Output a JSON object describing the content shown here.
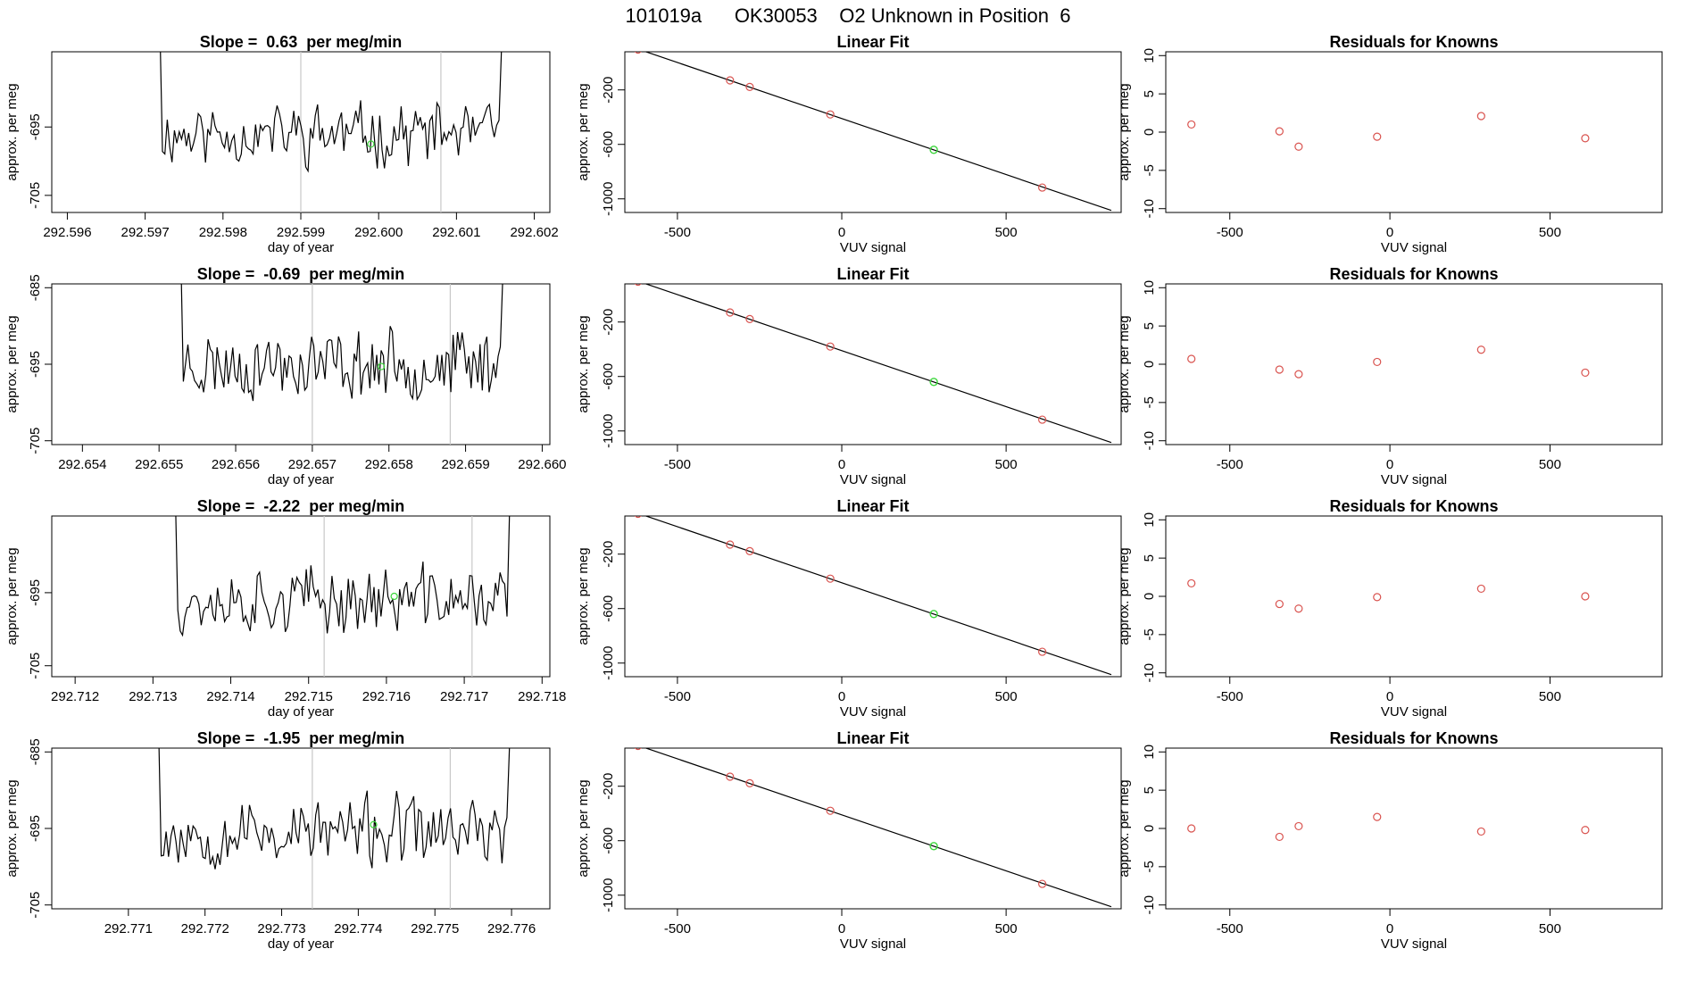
{
  "page_title": "101019a      OK30053    O2 Unknown in Position  6",
  "colors": {
    "known": "#d9534f",
    "unknown": "#3cd63c",
    "line": "#000000",
    "marker": "#c8c8c8"
  },
  "chart_data": [
    {
      "type": "line",
      "panel": "timeseries",
      "row": 0,
      "title": "Slope =  0.63  per meg/min",
      "xlabel": "day of year",
      "ylabel": "approx. per meg",
      "xlim": [
        292.5958,
        292.6022
      ],
      "ylim": [
        -707.5,
        -684
      ],
      "xticks": [
        "292.596",
        "292.597",
        "292.598",
        "292.599",
        "292.600",
        "292.601",
        "292.602"
      ],
      "yticks": [
        "-695",
        "-705"
      ],
      "window": [
        292.5971,
        292.6017
      ],
      "level": -696,
      "noise_seed": 11,
      "markers": [
        292.599,
        292.6008
      ],
      "unknown_point": {
        "x": 292.5999,
        "y": -697.5
      }
    },
    {
      "type": "line",
      "panel": "timeseries",
      "row": 1,
      "title": "Slope =  -0.69  per meg/min",
      "xlabel": "day of year",
      "ylabel": "approx. per meg",
      "xlim": [
        292.6536,
        292.6601
      ],
      "ylim": [
        -705.5,
        -684.5
      ],
      "xticks": [
        "292.654",
        "292.655",
        "292.656",
        "292.657",
        "292.658",
        "292.659",
        "292.660"
      ],
      "yticks": [
        "-685",
        "-695",
        "-705"
      ],
      "window": [
        292.6552,
        292.6596
      ],
      "level": -695,
      "noise_seed": 23,
      "markers": [
        292.657,
        292.6588
      ],
      "unknown_point": {
        "x": 292.6579,
        "y": -695.3
      }
    },
    {
      "type": "line",
      "panel": "timeseries",
      "row": 2,
      "title": "Slope =  -2.22  per meg/min",
      "xlabel": "day of year",
      "ylabel": "approx. per meg",
      "xlim": [
        292.7117,
        292.7181
      ],
      "ylim": [
        -706.5,
        -684.5
      ],
      "xticks": [
        "292.712",
        "292.713",
        "292.714",
        "292.715",
        "292.716",
        "292.717",
        "292.718"
      ],
      "yticks": [
        "-695",
        "-705"
      ],
      "window": [
        292.7132,
        292.7177
      ],
      "level": -696,
      "noise_seed": 37,
      "markers": [
        292.7152,
        292.7171
      ],
      "unknown_point": {
        "x": 292.7161,
        "y": -695.5
      }
    },
    {
      "type": "line",
      "panel": "timeseries",
      "row": 3,
      "title": "Slope =  -1.95  per meg/min",
      "xlabel": "day of year",
      "ylabel": "approx. per meg",
      "xlim": [
        292.77,
        292.7765
      ],
      "ylim": [
        -705.5,
        -684.5
      ],
      "xticks": [
        "292.771",
        "292.772",
        "292.773",
        "292.774",
        "292.775",
        "292.776"
      ],
      "yticks": [
        "-685",
        "-695",
        "-705"
      ],
      "window": [
        292.7713,
        292.7761
      ],
      "level": -695.5,
      "noise_seed": 53,
      "markers": [
        292.7734,
        292.7752
      ],
      "unknown_point": {
        "x": 292.7742,
        "y": -694.5
      }
    },
    {
      "type": "scatter",
      "panel": "fit",
      "row": 0,
      "title": "Linear Fit",
      "xlabel": "VUV signal",
      "ylabel": "approx. per meg",
      "xlim": [
        -660,
        850
      ],
      "ylim": [
        -1100,
        80
      ],
      "xticks": [
        -500,
        0,
        500
      ],
      "yticks": [
        -200,
        -600,
        -1000
      ],
      "fit_line": {
        "x": [
          -620,
          820
        ],
        "y": [
          100,
          -1085
        ]
      },
      "knowns": [
        {
          "x": -620,
          "y": 96
        },
        {
          "x": -340,
          "y": -130
        },
        {
          "x": -280,
          "y": -178
        },
        {
          "x": -35,
          "y": -380
        },
        {
          "x": 610,
          "y": -917
        }
      ],
      "unknown": {
        "x": 280,
        "y": -640
      }
    },
    {
      "type": "scatter",
      "panel": "fit",
      "row": 1,
      "title": "Linear Fit",
      "xlabel": "VUV signal",
      "ylabel": "approx. per meg",
      "xlim": [
        -660,
        850
      ],
      "ylim": [
        -1100,
        80
      ],
      "xticks": [
        -500,
        0,
        500
      ],
      "yticks": [
        -200,
        -600,
        -1000
      ],
      "fit_line": {
        "x": [
          -620,
          820
        ],
        "y": [
          100,
          -1085
        ]
      },
      "knowns": [
        {
          "x": -620,
          "y": 96
        },
        {
          "x": -340,
          "y": -130
        },
        {
          "x": -280,
          "y": -178
        },
        {
          "x": -35,
          "y": -380
        },
        {
          "x": 610,
          "y": -917
        }
      ],
      "unknown": {
        "x": 280,
        "y": -640
      }
    },
    {
      "type": "scatter",
      "panel": "fit",
      "row": 2,
      "title": "Linear Fit",
      "xlabel": "VUV signal",
      "ylabel": "approx. per meg",
      "xlim": [
        -660,
        850
      ],
      "ylim": [
        -1100,
        80
      ],
      "xticks": [
        -500,
        0,
        500
      ],
      "yticks": [
        -200,
        -600,
        -1000
      ],
      "fit_line": {
        "x": [
          -620,
          820
        ],
        "y": [
          100,
          -1085
        ]
      },
      "knowns": [
        {
          "x": -620,
          "y": 96
        },
        {
          "x": -340,
          "y": -130
        },
        {
          "x": -280,
          "y": -178
        },
        {
          "x": -35,
          "y": -380
        },
        {
          "x": 610,
          "y": -917
        }
      ],
      "unknown": {
        "x": 280,
        "y": -640
      }
    },
    {
      "type": "scatter",
      "panel": "fit",
      "row": 3,
      "title": "Linear Fit",
      "xlabel": "VUV signal",
      "ylabel": "approx. per meg",
      "xlim": [
        -660,
        850
      ],
      "ylim": [
        -1100,
        80
      ],
      "xticks": [
        -500,
        0,
        500
      ],
      "yticks": [
        -200,
        -600,
        -1000
      ],
      "fit_line": {
        "x": [
          -620,
          820
        ],
        "y": [
          100,
          -1085
        ]
      },
      "knowns": [
        {
          "x": -620,
          "y": 96
        },
        {
          "x": -340,
          "y": -130
        },
        {
          "x": -280,
          "y": -178
        },
        {
          "x": -35,
          "y": -380
        },
        {
          "x": 610,
          "y": -917
        }
      ],
      "unknown": {
        "x": 280,
        "y": -640
      }
    },
    {
      "type": "scatter",
      "panel": "residuals",
      "row": 0,
      "title": "Residuals for Knowns",
      "xlabel": "VUV signal",
      "ylabel": "approx. per meg",
      "xlim": [
        -700,
        850
      ],
      "ylim": [
        -10.5,
        10.5
      ],
      "xticks": [
        -500,
        0,
        500
      ],
      "yticks": [
        10,
        5,
        0,
        -5,
        -10
      ],
      "points": [
        {
          "x": -620,
          "y": 1.0
        },
        {
          "x": -345,
          "y": 0.1
        },
        {
          "x": -285,
          "y": -1.9
        },
        {
          "x": -40,
          "y": -0.6
        },
        {
          "x": 285,
          "y": 2.1
        },
        {
          "x": 610,
          "y": -0.8
        }
      ]
    },
    {
      "type": "scatter",
      "panel": "residuals",
      "row": 1,
      "title": "Residuals for Knowns",
      "xlabel": "VUV signal",
      "ylabel": "approx. per meg",
      "xlim": [
        -700,
        850
      ],
      "ylim": [
        -10.5,
        10.5
      ],
      "xticks": [
        -500,
        0,
        500
      ],
      "yticks": [
        10,
        5,
        0,
        -5,
        -10
      ],
      "points": [
        {
          "x": -620,
          "y": 0.7
        },
        {
          "x": -345,
          "y": -0.7
        },
        {
          "x": -285,
          "y": -1.3
        },
        {
          "x": -40,
          "y": 0.3
        },
        {
          "x": 285,
          "y": 1.9
        },
        {
          "x": 610,
          "y": -1.1
        }
      ]
    },
    {
      "type": "scatter",
      "panel": "residuals",
      "row": 2,
      "title": "Residuals for Knowns",
      "xlabel": "VUV signal",
      "ylabel": "approx. per meg",
      "xlim": [
        -700,
        850
      ],
      "ylim": [
        -10.5,
        10.5
      ],
      "xticks": [
        -500,
        0,
        500
      ],
      "yticks": [
        10,
        5,
        0,
        -5,
        -10
      ],
      "points": [
        {
          "x": -620,
          "y": 1.7
        },
        {
          "x": -345,
          "y": -1.0
        },
        {
          "x": -285,
          "y": -1.6
        },
        {
          "x": -40,
          "y": -0.1
        },
        {
          "x": 285,
          "y": 1.0
        },
        {
          "x": 610,
          "y": 0.0
        }
      ]
    },
    {
      "type": "scatter",
      "panel": "residuals",
      "row": 3,
      "title": "Residuals for Knowns",
      "xlabel": "VUV signal",
      "ylabel": "approx. per meg",
      "xlim": [
        -700,
        850
      ],
      "ylim": [
        -10.5,
        10.5
      ],
      "xticks": [
        -500,
        0,
        500
      ],
      "yticks": [
        10,
        5,
        0,
        -5,
        -10
      ],
      "points": [
        {
          "x": -620,
          "y": 0.0
        },
        {
          "x": -345,
          "y": -1.1
        },
        {
          "x": -285,
          "y": 0.3
        },
        {
          "x": -40,
          "y": 1.5
        },
        {
          "x": 285,
          "y": -0.4
        },
        {
          "x": 610,
          "y": -0.2
        }
      ]
    }
  ]
}
